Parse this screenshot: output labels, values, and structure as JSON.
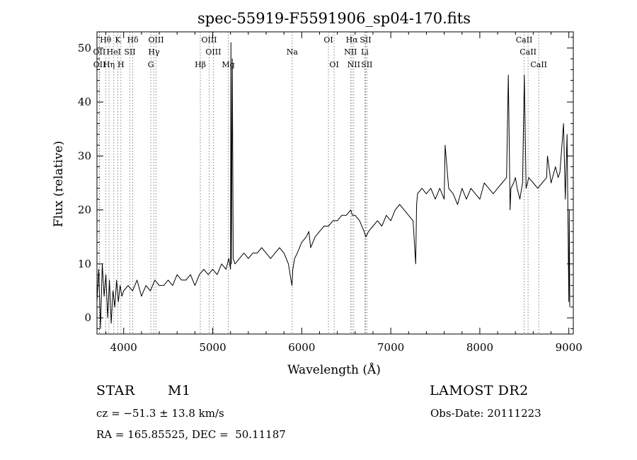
{
  "chart_data": {
    "type": "line",
    "title": "spec-55919-F5591906_sp04-170.fits",
    "xlabel": "Wavelength (Å)",
    "ylabel": "Flux (relative)",
    "xlim": [
      3700,
      9050
    ],
    "ylim": [
      -3,
      53
    ],
    "xticks": [
      4000,
      5000,
      6000,
      7000,
      8000,
      9000
    ],
    "yticks": [
      0,
      10,
      20,
      30,
      40,
      50
    ],
    "grid": false,
    "series": [
      {
        "x": [
          3700,
          3720,
          3740,
          3760,
          3780,
          3800,
          3820,
          3840,
          3860,
          3880,
          3900,
          3920,
          3940,
          3960,
          3980,
          4000,
          4050,
          4100,
          4150,
          4200,
          4250,
          4300,
          4350,
          4400,
          4450,
          4500,
          4550,
          4600,
          4650,
          4700,
          4750,
          4800,
          4850,
          4900,
          4950,
          5000,
          5050,
          5100,
          5150,
          5180,
          5200,
          5205,
          5210,
          5220,
          5230,
          5250,
          5300,
          5350,
          5400,
          5450,
          5500,
          5550,
          5600,
          5650,
          5700,
          5750,
          5800,
          5850,
          5880,
          5890,
          5900,
          5920,
          5950,
          6000,
          6050,
          6080,
          6100,
          6150,
          6200,
          6250,
          6300,
          6350,
          6400,
          6450,
          6500,
          6550,
          6570,
          6600,
          6650,
          6700,
          6720,
          6750,
          6800,
          6850,
          6900,
          6950,
          7000,
          7050,
          7100,
          7150,
          7200,
          7250,
          7280,
          7290,
          7300,
          7350,
          7400,
          7450,
          7500,
          7550,
          7600,
          7610,
          7650,
          7700,
          7750,
          7800,
          7850,
          7900,
          7950,
          8000,
          8050,
          8100,
          8150,
          8200,
          8250,
          8300,
          8320,
          8340,
          8350,
          8380,
          8400,
          8420,
          8450,
          8480,
          8500,
          8520,
          8550,
          8600,
          8650,
          8700,
          8750,
          8760,
          8800,
          8850,
          8880,
          8900,
          8940,
          8960,
          8980,
          9000,
          9005,
          9010
        ],
        "values": [
          3,
          9,
          -2,
          10,
          4,
          8,
          0,
          7,
          -1,
          5,
          2,
          7,
          3,
          6,
          4,
          5,
          6,
          5,
          7,
          4,
          6,
          5,
          7,
          6,
          6,
          7,
          6,
          8,
          7,
          7,
          8,
          6,
          8,
          9,
          8,
          9,
          8,
          10,
          9,
          11,
          9,
          51,
          10,
          48,
          11,
          10,
          11,
          12,
          11,
          12,
          12,
          13,
          12,
          11,
          12,
          13,
          12,
          10,
          7,
          6,
          9,
          11,
          12,
          14,
          15,
          16,
          13,
          15,
          16,
          17,
          17,
          18,
          18,
          19,
          19,
          20,
          19,
          19,
          18,
          16,
          15,
          16,
          17,
          18,
          17,
          19,
          18,
          20,
          21,
          20,
          19,
          18,
          10,
          21,
          23,
          24,
          23,
          24,
          22,
          24,
          22,
          32,
          24,
          23,
          21,
          24,
          22,
          24,
          23,
          22,
          25,
          24,
          23,
          24,
          25,
          26,
          45,
          20,
          24,
          25,
          26,
          24,
          22,
          25,
          45,
          24,
          26,
          25,
          24,
          25,
          26,
          30,
          25,
          28,
          26,
          27,
          36,
          22,
          34,
          3,
          20,
          2
        ]
      }
    ],
    "line_markers": [
      {
        "label": "Hθ",
        "x": 3797,
        "row": 0
      },
      {
        "label": "K",
        "x": 3934,
        "row": 0
      },
      {
        "label": "Hδ",
        "x": 4102,
        "row": 0
      },
      {
        "label": "OIII",
        "x": 4364,
        "row": 0
      },
      {
        "label": "OIII",
        "x": 4960,
        "row": 0
      },
      {
        "label": "OI",
        "x": 6300,
        "row": 0
      },
      {
        "label": "Hα",
        "x": 6563,
        "row": 0
      },
      {
        "label": "SII",
        "x": 6717,
        "row": 0
      },
      {
        "label": "CaII",
        "x": 8498,
        "row": 0
      },
      {
        "label": "OII",
        "x": 3727,
        "row": 1
      },
      {
        "label": "HeI",
        "x": 3889,
        "row": 1
      },
      {
        "label": "SII",
        "x": 4070,
        "row": 1
      },
      {
        "label": "Hγ",
        "x": 4340,
        "row": 1
      },
      {
        "label": "OIII",
        "x": 5007,
        "row": 1
      },
      {
        "label": "Na",
        "x": 5893,
        "row": 1
      },
      {
        "label": "NII",
        "x": 6548,
        "row": 1
      },
      {
        "label": "Li",
        "x": 6708,
        "row": 1
      },
      {
        "label": "CaII",
        "x": 8542,
        "row": 1
      },
      {
        "label": "OII",
        "x": 3729,
        "row": 2
      },
      {
        "label": "Hη",
        "x": 3835,
        "row": 2
      },
      {
        "label": "H",
        "x": 3969,
        "row": 2
      },
      {
        "label": "G",
        "x": 4305,
        "row": 2
      },
      {
        "label": "Hβ",
        "x": 4861,
        "row": 2
      },
      {
        "label": "Mg",
        "x": 5175,
        "row": 2
      },
      {
        "label": "OI",
        "x": 6364,
        "row": 2
      },
      {
        "label": "NII",
        "x": 6584,
        "row": 2
      },
      {
        "label": "SII",
        "x": 6731,
        "row": 2
      },
      {
        "label": "CaII",
        "x": 8662,
        "row": 2
      }
    ]
  },
  "info": {
    "class": "STAR",
    "subclass": "M1",
    "survey": "LAMOST DR2",
    "cz": "cz = −51.3 ± 13.8 km/s",
    "obs_date": "Obs-Date: 20111223",
    "coords": "RA = 165.85525, DEC =  50.11187"
  }
}
